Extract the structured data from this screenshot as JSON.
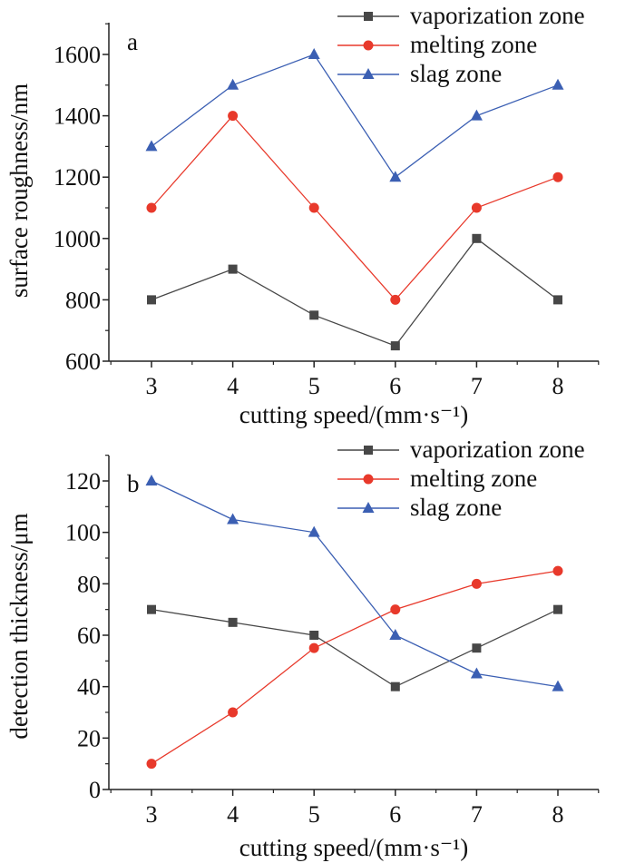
{
  "chart_data": [
    {
      "type": "line",
      "panel_label": "a",
      "x": [
        3,
        4,
        5,
        6,
        7,
        8
      ],
      "xlabel": "cutting speed/(mm·s⁻¹)",
      "ylabel": "surface roughness/nm",
      "xlim": [
        2.5,
        8.5
      ],
      "ylim": [
        600,
        1700
      ],
      "yticks": [
        600,
        800,
        1000,
        1200,
        1400,
        1600
      ],
      "xticks": [
        3,
        4,
        5,
        6,
        7,
        8
      ],
      "legend": "top-right",
      "series": [
        {
          "name": "vaporization zone",
          "color": "#474747",
          "marker": "square",
          "values": [
            800,
            900,
            750,
            650,
            1000,
            800
          ]
        },
        {
          "name": "melting zone",
          "color": "#e8392b",
          "marker": "circle",
          "values": [
            1100,
            1400,
            1100,
            800,
            1100,
            1200
          ]
        },
        {
          "name": "slag zone",
          "color": "#3b5fb3",
          "marker": "triangle",
          "values": [
            1300,
            1500,
            1600,
            1200,
            1400,
            1500
          ]
        }
      ]
    },
    {
      "type": "line",
      "panel_label": "b",
      "x": [
        3,
        4,
        5,
        6,
        7,
        8
      ],
      "xlabel": "cutting speed/(mm·s⁻¹)",
      "ylabel": "detection thickness/μm",
      "xlim": [
        2.5,
        8.5
      ],
      "ylim": [
        0,
        130
      ],
      "yticks": [
        0,
        20,
        40,
        60,
        80,
        100,
        120
      ],
      "xticks": [
        3,
        4,
        5,
        6,
        7,
        8
      ],
      "legend": "top-right",
      "series": [
        {
          "name": "vaporization zone",
          "color": "#474747",
          "marker": "square",
          "values": [
            70,
            65,
            60,
            40,
            55,
            70
          ]
        },
        {
          "name": "melting zone",
          "color": "#e8392b",
          "marker": "circle",
          "values": [
            10,
            30,
            55,
            70,
            80,
            85
          ]
        },
        {
          "name": "slag zone",
          "color": "#3b5fb3",
          "marker": "triangle",
          "values": [
            120,
            105,
            100,
            60,
            45,
            40
          ]
        }
      ]
    }
  ]
}
